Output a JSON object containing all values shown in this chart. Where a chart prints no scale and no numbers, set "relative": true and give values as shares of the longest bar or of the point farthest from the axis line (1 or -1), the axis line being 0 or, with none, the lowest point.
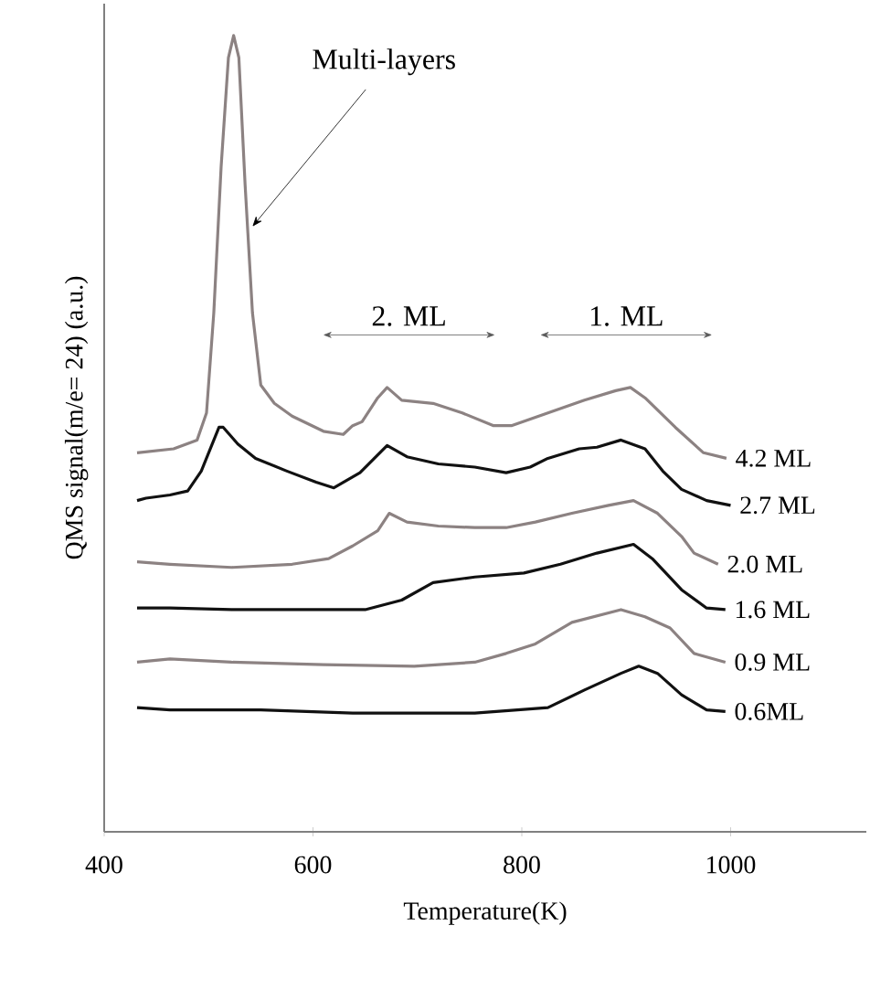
{
  "chart_data": {
    "type": "line",
    "relative": true,
    "xlabel": "Temperature(K)",
    "ylabel": "QMS signal(m/e= 24) (a.u.)",
    "xlim": [
      400,
      1130
    ],
    "xticks": [
      400,
      600,
      800,
      1000
    ],
    "tick_labels": "x",
    "grid": false,
    "legend": false,
    "marker": "none",
    "line_style": "solid",
    "series": [
      {
        "name": "4.2 ML",
        "color": "#8c8282",
        "x": [
          431.5,
          466.5,
          489,
          498,
          505,
          512,
          519,
          524,
          529,
          535,
          542,
          550,
          563,
          580,
          610,
          629,
          638,
          647,
          662,
          671,
          685,
          715,
          743,
          773,
          790,
          825,
          860,
          890,
          904,
          918,
          947,
          974,
          996
        ],
        "values": [
          0.476,
          0.481,
          0.492,
          0.526,
          0.652,
          0.835,
          0.972,
          1.0,
          0.972,
          0.812,
          0.652,
          0.561,
          0.538,
          0.522,
          0.503,
          0.499,
          0.51,
          0.515,
          0.545,
          0.558,
          0.542,
          0.538,
          0.526,
          0.51,
          0.51,
          0.526,
          0.542,
          0.554,
          0.558,
          0.545,
          0.508,
          0.476,
          0.469
        ]
      },
      {
        "name": "2.7 ML",
        "color": "#111111",
        "x": [
          431.5,
          440,
          463,
          480,
          493,
          510,
          514,
          528,
          545,
          575,
          603,
          620,
          645,
          671,
          690,
          720,
          755,
          785,
          808,
          825,
          855,
          872,
          895,
          918,
          935,
          953,
          977,
          1000
        ],
        "values": [
          0.416,
          0.419,
          0.423,
          0.428,
          0.453,
          0.508,
          0.508,
          0.487,
          0.469,
          0.453,
          0.439,
          0.432,
          0.451,
          0.485,
          0.471,
          0.462,
          0.458,
          0.451,
          0.458,
          0.469,
          0.481,
          0.483,
          0.492,
          0.481,
          0.453,
          0.43,
          0.416,
          0.41
        ]
      },
      {
        "name": "2.0 ML",
        "color": "#8c8282",
        "x": [
          431.5,
          463,
          522,
          580,
          615,
          638,
          662,
          673,
          690,
          720,
          755,
          785,
          813,
          848,
          883,
          907,
          930,
          953,
          965,
          988
        ],
        "values": [
          0.339,
          0.336,
          0.332,
          0.336,
          0.343,
          0.359,
          0.378,
          0.4,
          0.389,
          0.384,
          0.382,
          0.382,
          0.389,
          0.4,
          0.41,
          0.416,
          0.4,
          0.371,
          0.35,
          0.336
        ]
      },
      {
        "name": "1.6 ML",
        "color": "#111111",
        "x": [
          431.5,
          463,
          522,
          580,
          650,
          685,
          715,
          755,
          802,
          837,
          872,
          907,
          925,
          953,
          977,
          995
        ],
        "values": [
          0.281,
          0.281,
          0.279,
          0.279,
          0.279,
          0.291,
          0.313,
          0.32,
          0.325,
          0.336,
          0.35,
          0.361,
          0.343,
          0.304,
          0.281,
          0.279
        ]
      },
      {
        "name": "0.9 ML",
        "color": "#8c8282",
        "x": [
          431.5,
          463,
          522,
          610,
          697,
          755,
          785,
          813,
          848,
          895,
          918,
          942,
          965,
          995
        ],
        "values": [
          0.213,
          0.217,
          0.213,
          0.21,
          0.208,
          0.213,
          0.224,
          0.236,
          0.263,
          0.279,
          0.27,
          0.256,
          0.224,
          0.213
        ]
      },
      {
        "name": "0.6ML",
        "color": "#111111",
        "x": [
          431.5,
          463,
          550,
          638,
          755,
          825,
          860,
          895,
          912,
          930,
          953,
          977,
          995
        ],
        "values": [
          0.156,
          0.153,
          0.153,
          0.149,
          0.149,
          0.156,
          0.178,
          0.199,
          0.208,
          0.199,
          0.172,
          0.153,
          0.151
        ]
      }
    ],
    "annotations": [
      {
        "text": "Multi-layers",
        "x": 542,
        "y": 0.76
      },
      "2. ML",
      "1. ML"
    ]
  }
}
